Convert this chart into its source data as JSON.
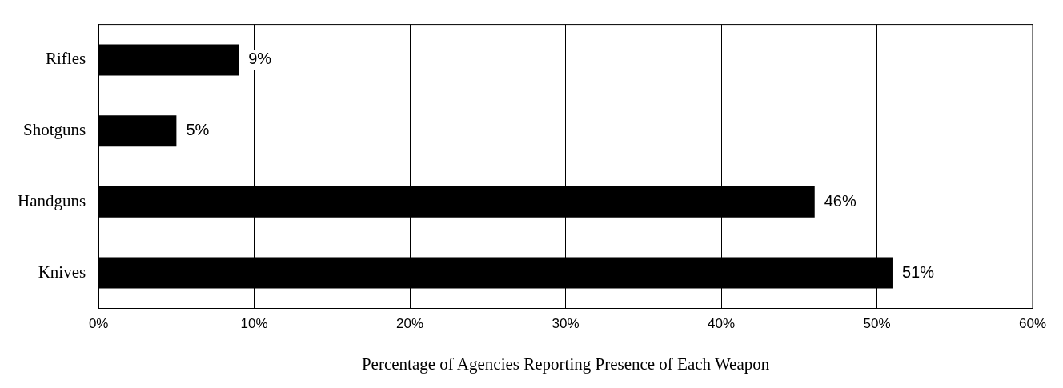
{
  "chart_data": {
    "type": "bar",
    "orientation": "horizontal",
    "xlabel": "Percentage of Agencies Reporting Presence of Each Weapon",
    "categories": [
      "Rifles",
      "Shotguns",
      "Handguns",
      "Knives"
    ],
    "values": [
      9,
      5,
      46,
      51
    ],
    "color": "#000000",
    "value_labels": [
      "9%",
      "5%",
      "46%",
      "51%"
    ],
    "xlim": [
      0,
      60
    ],
    "xticks": [
      {
        "value": 0,
        "label": "0%"
      },
      {
        "value": 10,
        "label": "10%"
      },
      {
        "value": 20,
        "label": "20%"
      },
      {
        "value": 30,
        "label": "30%"
      },
      {
        "value": 40,
        "label": "40%"
      },
      {
        "value": 50,
        "label": "50%"
      },
      {
        "value": 60,
        "label": "60%"
      }
    ],
    "grid": "x",
    "legend": false
  }
}
